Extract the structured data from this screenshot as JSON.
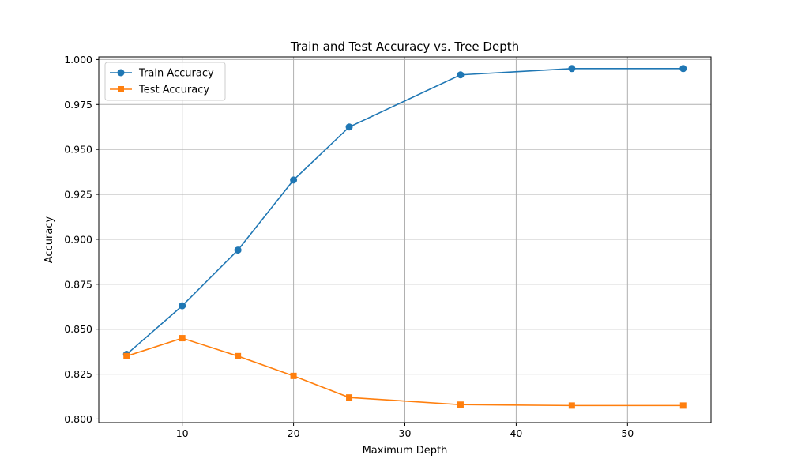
{
  "chart_data": {
    "type": "line",
    "title": "Train and Test Accuracy vs. Tree Depth",
    "xlabel": "Maximum Depth",
    "ylabel": "Accuracy",
    "xlim": [
      2.5,
      57.5
    ],
    "ylim": [
      0.798,
      1.0015
    ],
    "xticks": [
      10,
      20,
      30,
      40,
      50
    ],
    "yticks": [
      0.8,
      0.825,
      0.85,
      0.875,
      0.9,
      0.925,
      0.95,
      0.975,
      1.0
    ],
    "grid": true,
    "legend_position": "top-left",
    "x": [
      5,
      10,
      15,
      20,
      25,
      35,
      45,
      55
    ],
    "series": [
      {
        "name": "Train Accuracy",
        "color": "#1f77b4",
        "marker": "circle",
        "values": [
          0.836,
          0.863,
          0.894,
          0.933,
          0.9625,
          0.9915,
          0.995,
          0.995
        ]
      },
      {
        "name": "Test Accuracy",
        "color": "#ff7f0e",
        "marker": "square",
        "values": [
          0.835,
          0.845,
          0.835,
          0.824,
          0.812,
          0.808,
          0.8075,
          0.8075
        ]
      }
    ]
  }
}
